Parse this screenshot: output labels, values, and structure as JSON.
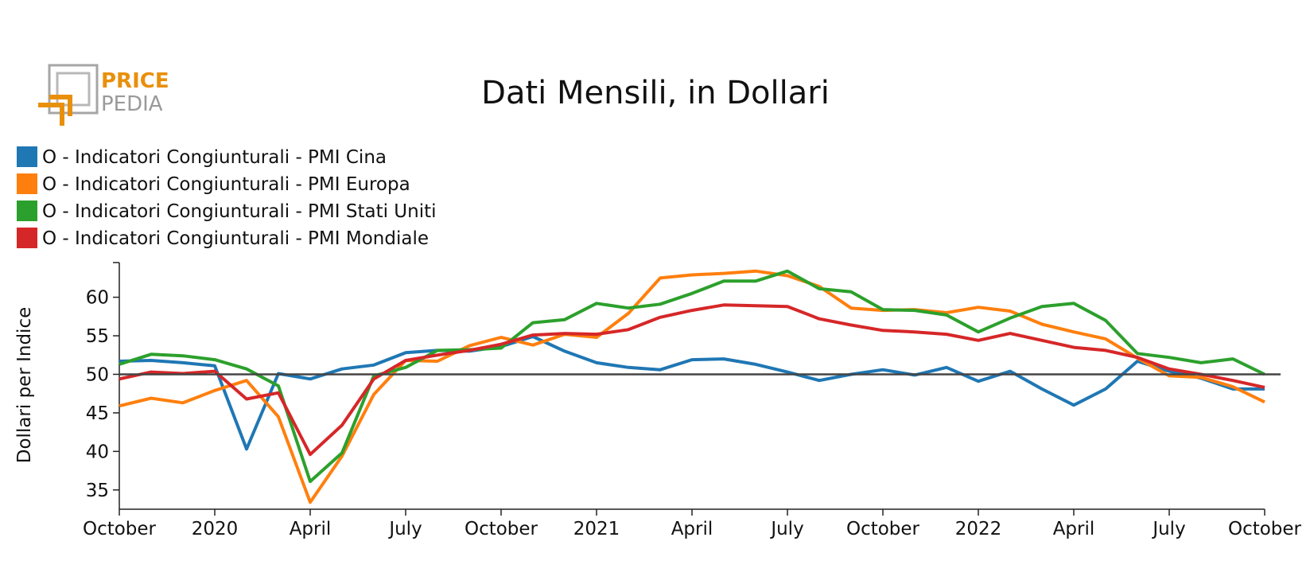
{
  "logo": {
    "line1": "PRICE",
    "line2": "PEDIA"
  },
  "chart_data": {
    "type": "line",
    "title": "Dati Mensili, in Dollari",
    "ylabel": "Dollari per Indice",
    "xlabel": "",
    "ylim": [
      32.5,
      64.5
    ],
    "yticks": [
      35,
      40,
      45,
      50,
      55,
      60
    ],
    "x": [
      "2019-10",
      "2019-11",
      "2019-12",
      "2020-01",
      "2020-02",
      "2020-03",
      "2020-04",
      "2020-05",
      "2020-06",
      "2020-07",
      "2020-08",
      "2020-09",
      "2020-10",
      "2020-11",
      "2020-12",
      "2021-01",
      "2021-02",
      "2021-03",
      "2021-04",
      "2021-05",
      "2021-06",
      "2021-07",
      "2021-08",
      "2021-09",
      "2021-10",
      "2021-11",
      "2021-12",
      "2022-01",
      "2022-02",
      "2022-03",
      "2022-04",
      "2022-05",
      "2022-06",
      "2022-07",
      "2022-08",
      "2022-09",
      "2022-10"
    ],
    "xticks": [
      {
        "x": "2019-10",
        "label": "October"
      },
      {
        "x": "2020-01",
        "label": "2020"
      },
      {
        "x": "2020-04",
        "label": "April"
      },
      {
        "x": "2020-07",
        "label": "July"
      },
      {
        "x": "2020-10",
        "label": "October"
      },
      {
        "x": "2021-01",
        "label": "2021"
      },
      {
        "x": "2021-04",
        "label": "April"
      },
      {
        "x": "2021-07",
        "label": "July"
      },
      {
        "x": "2021-10",
        "label": "October"
      },
      {
        "x": "2022-01",
        "label": "2022"
      },
      {
        "x": "2022-04",
        "label": "April"
      },
      {
        "x": "2022-07",
        "label": "July"
      },
      {
        "x": "2022-10",
        "label": "October"
      }
    ],
    "reference_line": 50,
    "legend_position": "top-left",
    "series": [
      {
        "name": "O - Indicatori Congiunturali - PMI Cina",
        "color": "#1f77b4",
        "values": [
          51.7,
          51.8,
          51.5,
          51.1,
          40.3,
          50.1,
          49.4,
          50.7,
          51.2,
          52.8,
          53.1,
          53.0,
          53.6,
          54.9,
          53.0,
          51.5,
          50.9,
          50.6,
          51.9,
          52.0,
          51.3,
          50.3,
          49.2,
          50.0,
          50.6,
          49.9,
          50.9,
          49.1,
          50.4,
          48.1,
          46.0,
          48.1,
          51.7,
          50.4,
          49.5,
          48.1,
          48.1
        ]
      },
      {
        "name": "O - Indicatori Congiunturali - PMI Europa",
        "color": "#ff7f0e",
        "values": [
          45.9,
          46.9,
          46.3,
          47.9,
          49.2,
          44.5,
          33.4,
          39.4,
          47.4,
          51.8,
          51.7,
          53.7,
          54.8,
          53.8,
          55.2,
          54.8,
          57.9,
          62.5,
          62.9,
          63.1,
          63.4,
          62.8,
          61.4,
          58.6,
          58.3,
          58.4,
          58.0,
          58.7,
          58.2,
          56.5,
          55.5,
          54.6,
          52.1,
          49.8,
          49.6,
          48.4,
          46.4
        ]
      },
      {
        "name": "O - Indicatori Congiunturali - PMI Stati Uniti",
        "color": "#2ca02c",
        "values": [
          51.3,
          52.6,
          52.4,
          51.9,
          50.7,
          48.5,
          36.1,
          39.8,
          49.8,
          50.9,
          53.1,
          53.2,
          53.4,
          56.7,
          57.1,
          59.2,
          58.6,
          59.1,
          60.5,
          62.1,
          62.1,
          63.4,
          61.1,
          60.7,
          58.4,
          58.3,
          57.7,
          55.5,
          57.3,
          58.8,
          59.2,
          57.0,
          52.7,
          52.2,
          51.5,
          52.0,
          50.0
        ]
      },
      {
        "name": "O - Indicatori Congiunturali - PMI Mondiale",
        "color": "#d62728",
        "values": [
          49.4,
          50.3,
          50.1,
          50.4,
          46.8,
          47.6,
          39.6,
          43.4,
          49.4,
          51.8,
          52.5,
          53.1,
          53.9,
          55.1,
          55.3,
          55.2,
          55.8,
          57.4,
          58.3,
          59.0,
          58.9,
          58.8,
          57.2,
          56.4,
          55.7,
          55.5,
          55.2,
          54.4,
          55.3,
          54.4,
          53.5,
          53.1,
          52.2,
          50.7,
          50.0,
          49.2,
          48.3
        ]
      }
    ]
  }
}
